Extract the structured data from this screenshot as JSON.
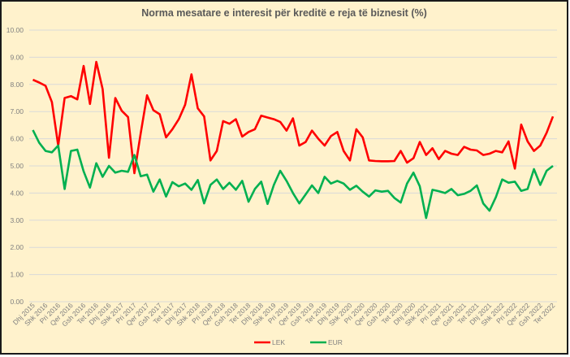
{
  "chart_data": {
    "type": "line",
    "title": "Norma mesatare e interesit për kreditë e reja të biznesit (%)",
    "xlabel": "",
    "ylabel": "",
    "ylim": [
      0,
      10
    ],
    "yticks": [
      "0.00",
      "1.00",
      "2.00",
      "3.00",
      "4.00",
      "5.00",
      "6.00",
      "7.00",
      "8.00",
      "9.00",
      "10.00"
    ],
    "grid": true,
    "legend_position": "bottom",
    "x_tick_labels": [
      "Dhj 2015",
      "Shk 2016",
      "Pri 2016",
      "Qer 2016",
      "Gsh 2016",
      "Tet 2016",
      "Dhj 2016",
      "Shk 2017",
      "Pri 2017",
      "Qer 2017",
      "Gsh 2017",
      "Tet 2017",
      "Dhj 2017",
      "Shk 2018",
      "Pri 2018",
      "Qer 2018",
      "Gsh 2018",
      "Tet 2018",
      "Dhj 2018",
      "Shk 2019",
      "Pri 2019",
      "Qer 2019",
      "Gsh 2019",
      "Tet 2019",
      "Dhj 2019",
      "Shk 2020",
      "Pri 2020",
      "Qer 2020",
      "Gsh 2020",
      "Tet 2020",
      "Dhj 2020",
      "Shk 2021",
      "Pri 2021",
      "Qer 2021",
      "Gsh 2021",
      "Tet 2021",
      "Dhj 2021",
      "Shk 2022",
      "Pri 2022",
      "Qer 2022",
      "Gsh 2022",
      "Tet 2022"
    ],
    "series": [
      {
        "name": "LEK",
        "color": "#ff0000",
        "values": [
          8.17,
          8.07,
          7.95,
          7.35,
          5.75,
          7.5,
          7.57,
          7.45,
          8.68,
          7.28,
          8.83,
          7.83,
          5.3,
          7.5,
          7.03,
          6.8,
          4.73,
          6.2,
          7.6,
          7.05,
          6.9,
          6.05,
          6.35,
          6.72,
          7.25,
          8.37,
          7.12,
          6.82,
          5.2,
          5.55,
          6.65,
          6.55,
          6.72,
          6.08,
          6.25,
          6.35,
          6.85,
          6.78,
          6.72,
          6.62,
          6.3,
          6.75,
          5.75,
          5.88,
          6.3,
          6.0,
          5.75,
          6.1,
          6.25,
          5.55,
          5.2,
          6.35,
          6.05,
          5.2,
          5.18,
          5.17,
          5.17,
          5.18,
          5.55,
          5.12,
          5.28,
          5.88,
          5.4,
          5.65,
          5.25,
          5.55,
          5.45,
          5.4,
          5.7,
          5.6,
          5.57,
          5.4,
          5.45,
          5.55,
          5.5,
          5.9,
          4.9,
          6.52,
          5.9,
          5.55,
          5.75,
          6.22,
          6.82
        ]
      },
      {
        "name": "EUR",
        "color": "#00b050",
        "values": [
          6.32,
          5.85,
          5.55,
          5.5,
          5.75,
          4.15,
          5.55,
          5.6,
          4.8,
          4.2,
          5.1,
          4.6,
          5.0,
          4.75,
          4.82,
          4.78,
          5.4,
          4.62,
          4.68,
          4.05,
          4.5,
          3.87,
          4.4,
          4.25,
          4.35,
          4.12,
          4.48,
          3.62,
          4.3,
          4.5,
          4.15,
          4.38,
          4.12,
          4.45,
          3.68,
          4.15,
          4.42,
          3.6,
          4.3,
          4.82,
          4.45,
          4.0,
          3.62,
          3.95,
          4.28,
          4.0,
          4.6,
          4.35,
          4.45,
          4.35,
          4.12,
          4.27,
          4.05,
          3.87,
          4.1,
          4.05,
          4.08,
          3.82,
          3.65,
          4.35,
          4.75,
          4.25,
          3.08,
          4.12,
          4.07,
          4.0,
          4.15,
          3.92,
          3.97,
          4.08,
          4.28,
          3.62,
          3.35,
          3.85,
          4.5,
          4.38,
          4.42,
          4.08,
          4.15,
          4.88,
          4.3,
          4.82,
          5.0
        ]
      }
    ]
  }
}
